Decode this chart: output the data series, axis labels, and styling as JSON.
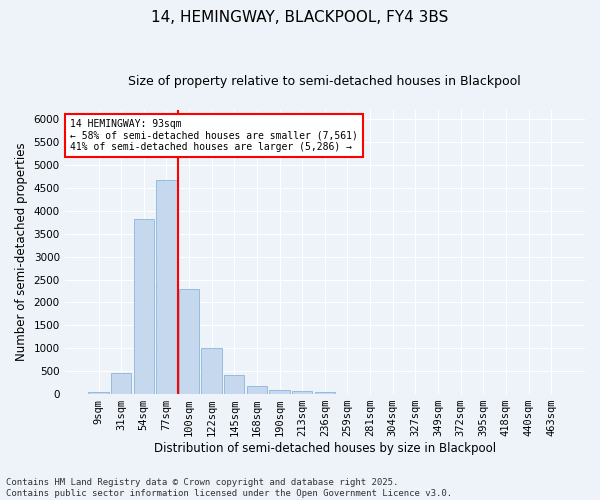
{
  "title": "14, HEMINGWAY, BLACKPOOL, FY4 3BS",
  "subtitle": "Size of property relative to semi-detached houses in Blackpool",
  "xlabel": "Distribution of semi-detached houses by size in Blackpool",
  "ylabel": "Number of semi-detached properties",
  "categories": [
    "9sqm",
    "31sqm",
    "54sqm",
    "77sqm",
    "100sqm",
    "122sqm",
    "145sqm",
    "168sqm",
    "190sqm",
    "213sqm",
    "236sqm",
    "259sqm",
    "281sqm",
    "304sqm",
    "327sqm",
    "349sqm",
    "372sqm",
    "395sqm",
    "418sqm",
    "440sqm",
    "463sqm"
  ],
  "values": [
    50,
    450,
    3820,
    4680,
    2300,
    1000,
    420,
    185,
    100,
    65,
    50,
    10,
    5,
    2,
    1,
    1,
    1,
    0,
    0,
    0,
    0
  ],
  "bar_color": "#c5d8ed",
  "bar_edge_color": "#7aadd4",
  "vline_color": "red",
  "vline_pos": 3.5,
  "annotation_text": "14 HEMINGWAY: 93sqm\n← 58% of semi-detached houses are smaller (7,561)\n41% of semi-detached houses are larger (5,286) →",
  "annotation_box_color": "white",
  "annotation_box_edge_color": "red",
  "ylim": [
    0,
    6200
  ],
  "yticks": [
    0,
    500,
    1000,
    1500,
    2000,
    2500,
    3000,
    3500,
    4000,
    4500,
    5000,
    5500,
    6000
  ],
  "background_color": "#eef2f9",
  "grid_color": "white",
  "footer": "Contains HM Land Registry data © Crown copyright and database right 2025.\nContains public sector information licensed under the Open Government Licence v3.0.",
  "title_fontsize": 11,
  "subtitle_fontsize": 9,
  "label_fontsize": 8.5,
  "tick_fontsize": 7.5,
  "footer_fontsize": 6.5
}
